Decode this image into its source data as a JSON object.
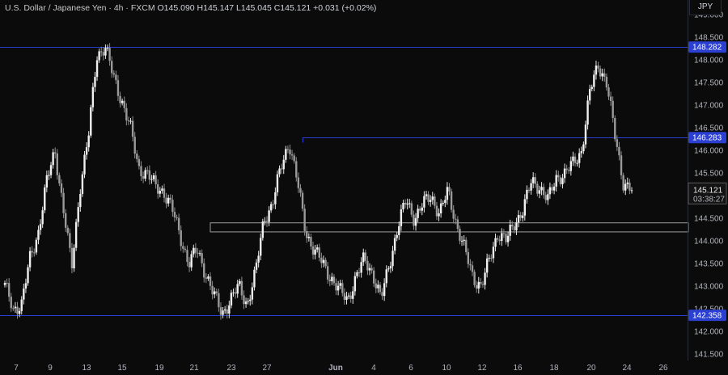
{
  "header": {
    "title": "U.S. Dollar / Japanese Yen · 4h · FXCM",
    "ohlc": "O145.090  H145.147  L145.045  C145.121  +0.031 (+0.02%)"
  },
  "currency_button": "JPY",
  "price_tag": {
    "price": "145.121",
    "countdown": "03:38:27"
  },
  "level_labels": [
    "148.282",
    "146.283",
    "142.358"
  ],
  "colors": {
    "background": "#0b0b0b",
    "candle": "#d9d9d9",
    "level_line": "#2b3fd1",
    "level_label": "#2b3fd1",
    "zone": "#9e9e9e"
  },
  "chart_data": {
    "type": "candlestick",
    "ylim": [
      141.45,
      149.0
    ],
    "y_ticks": [
      "141.500",
      "142.000",
      "142.500",
      "143.000",
      "143.500",
      "144.000",
      "144.500",
      "145.000",
      "145.500",
      "146.000",
      "146.500",
      "147.000",
      "147.500",
      "148.000",
      "148.500",
      "149.000"
    ],
    "x_ticks": [
      "7",
      "9",
      "13",
      "15",
      "19",
      "21",
      "23",
      "27",
      "Jun",
      "4",
      "6",
      "10",
      "12",
      "16",
      "18",
      "20",
      "24",
      "26"
    ],
    "horizontal_levels": [
      148.282,
      146.283,
      142.358
    ],
    "zone": {
      "low": 144.2,
      "high": 144.4
    },
    "close_path": [
      143.0,
      142.5,
      142.6,
      143.6,
      144.2,
      145.3,
      146.0,
      144.7,
      143.4,
      145.2,
      146.3,
      148.1,
      148.3,
      147.6,
      147.1,
      146.5,
      145.6,
      145.5,
      145.2,
      145.1,
      144.7,
      144.1,
      143.5,
      143.8,
      143.3,
      142.8,
      142.4,
      142.7,
      143.0,
      142.6,
      143.3,
      144.5,
      144.8,
      145.6,
      146.2,
      145.3,
      144.2,
      143.8,
      143.5,
      143.2,
      142.9,
      142.7,
      143.2,
      143.6,
      143.3,
      142.7,
      143.5,
      144.3,
      144.9,
      144.5,
      144.8,
      145.0,
      144.6,
      145.1,
      144.4,
      143.8,
      143.2,
      143.0,
      143.6,
      144.2,
      144.0,
      144.4,
      144.7,
      145.3,
      145.2,
      144.9,
      145.4,
      145.5,
      145.7,
      146.0,
      147.3,
      147.9,
      147.5,
      146.3,
      145.3,
      145.121
    ]
  }
}
